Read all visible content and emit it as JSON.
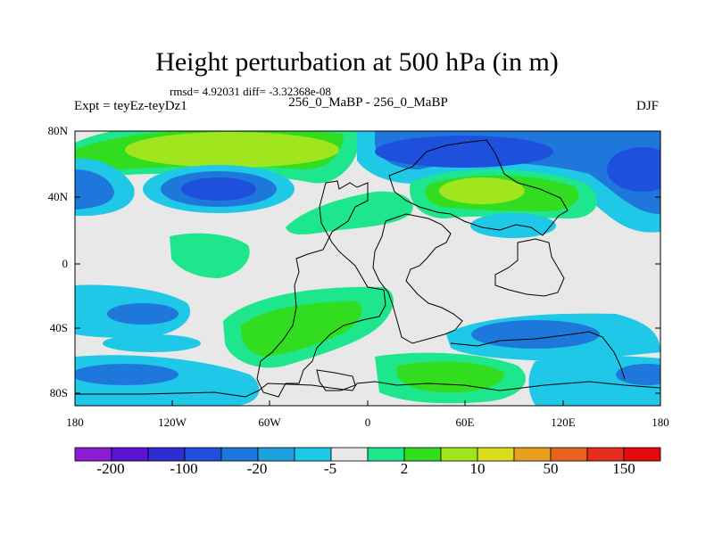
{
  "header": {
    "title": "Height perturbation at 500 hPa (in m)",
    "stats": "rmsd= 4.92031 diff= -3.32368e-08",
    "left_label": "Expt = teyEz-teyDz1",
    "center_label": "256_0_MaBP - 256_0_MaBP",
    "season": "DJF"
  },
  "map": {
    "lat_ticks": [
      "80N",
      "40N",
      "0",
      "40S",
      "80S"
    ],
    "lon_ticks": [
      "180",
      "120W",
      "60W",
      "0",
      "60E",
      "120E",
      "180"
    ]
  },
  "colorbar": {
    "colors": [
      "#8c1cd2",
      "#5a14d2",
      "#2d2dd2",
      "#1e50dc",
      "#1e78dc",
      "#1ea0dc",
      "#1ec8e6",
      "#e8e8e8",
      "#1ee68c",
      "#32dc1e",
      "#a0e61e",
      "#dcdc1e",
      "#e6a01e",
      "#e6641e",
      "#e62d1e",
      "#e60a0a"
    ],
    "labels": [
      "-200",
      "-100",
      "-20",
      "-5",
      "2",
      "10",
      "50",
      "150"
    ]
  },
  "legend_colors": {
    "neg_dark": "#1e50dc",
    "neg_mid": "#1e78dc",
    "neg_light": "#1ec8e6",
    "neutral": "#e8e8e8",
    "pos_light": "#1ee68c",
    "pos_mid": "#32dc1e",
    "pos_strong": "#a0e61e"
  }
}
